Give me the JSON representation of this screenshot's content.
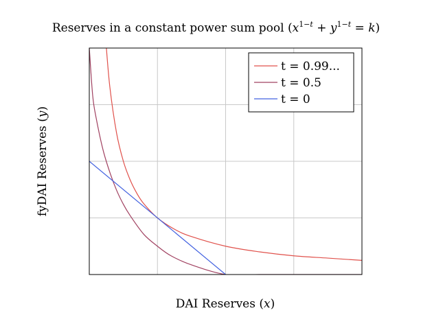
{
  "chart_data": {
    "type": "line",
    "title": "Reserves in a constant power sum pool (x^{1−t} + y^{1−t} = k)",
    "xlabel": "DAI Reserves (x)",
    "ylabel": "fyDAI Reserves (y)",
    "xlim": [
      0,
      4
    ],
    "ylim": [
      0,
      4
    ],
    "grid": true,
    "legend_position": "top-right",
    "series": [
      {
        "name": "t = 0.99...",
        "color": "#e0504a",
        "x": [
          0.24,
          0.3,
          0.4,
          0.5,
          0.6,
          0.7,
          0.8,
          1.0,
          1.25,
          1.5,
          2.0,
          2.5,
          3.0,
          3.5,
          4.0
        ],
        "y": [
          4.17,
          3.33,
          2.5,
          2.0,
          1.67,
          1.43,
          1.25,
          1.0,
          0.8,
          0.67,
          0.5,
          0.4,
          0.33,
          0.29,
          0.25
        ]
      },
      {
        "name": "t = 0.5",
        "color": "#a04060",
        "x": [
          0.0,
          0.05,
          0.1,
          0.2,
          0.3,
          0.4,
          0.5,
          0.6,
          0.8,
          1.0,
          1.2,
          1.5,
          2.0,
          2.5,
          3.0,
          3.5,
          4.0
        ],
        "y": [
          4.0,
          3.16,
          2.77,
          2.21,
          1.81,
          1.49,
          1.24,
          1.04,
          0.71,
          0.5,
          0.33,
          0.17,
          0.0,
          0.0,
          0.0,
          0.0,
          0.0
        ]
      },
      {
        "name": "t = 0",
        "color": "#4060e0",
        "x": [
          0,
          2
        ],
        "y": [
          2,
          0
        ]
      }
    ]
  }
}
